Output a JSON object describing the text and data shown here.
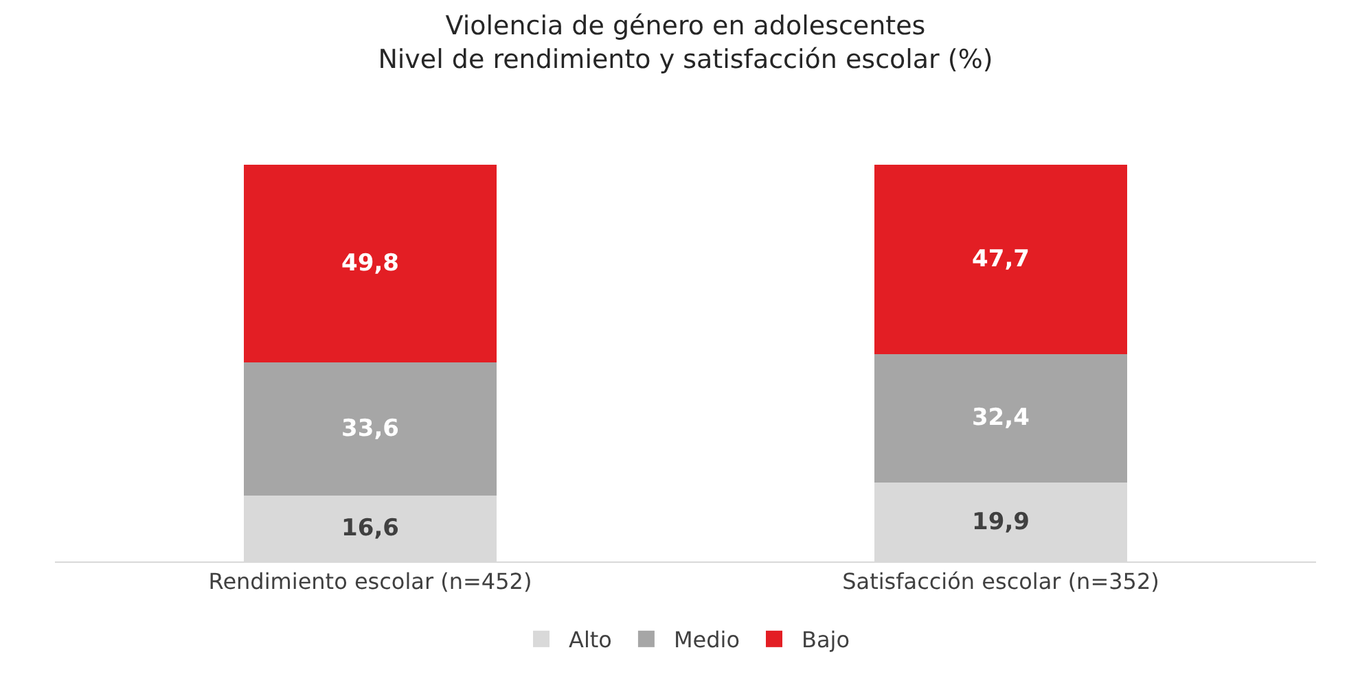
{
  "chart_data": {
    "type": "bar",
    "stacked": true,
    "title": "Violencia de género en adolescentes\nNivel de rendimiento y satisfacción escolar (%)",
    "categories": [
      "Rendimiento escolar (n=452)",
      "Satisfacción escolar (n=352)"
    ],
    "series": [
      {
        "name": "Alto",
        "color": "#d9d9d9",
        "values": [
          16.6,
          19.9
        ],
        "value_labels": [
          "16,6",
          "19,9"
        ]
      },
      {
        "name": "Medio",
        "color": "#a6a6a6",
        "values": [
          33.6,
          32.4
        ],
        "value_labels": [
          "33,6",
          "32,4"
        ]
      },
      {
        "name": "Bajo",
        "color": "#e31e24",
        "values": [
          49.8,
          47.7
        ],
        "value_labels": [
          "49,8",
          "47,7"
        ]
      }
    ],
    "legend": "bottom"
  }
}
